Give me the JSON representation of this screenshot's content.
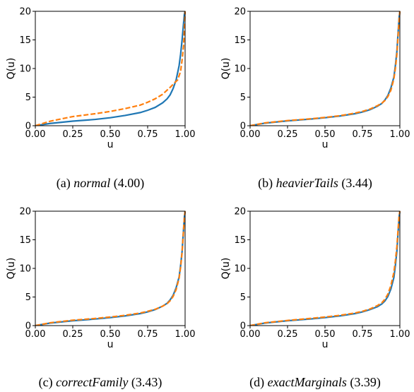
{
  "chart_data": [
    {
      "type": "line",
      "caption": {
        "prefix": "(a) ",
        "name": "normal",
        "suffix": " (4.00)"
      },
      "xlabel": "u",
      "ylabel": "Q(u)",
      "xlim": [
        0,
        1
      ],
      "ylim": [
        0,
        20
      ],
      "xticks": [
        "0.00",
        "0.25",
        "0.50",
        "0.75",
        "1.00"
      ],
      "yticks": [
        "0",
        "5",
        "10",
        "15",
        "20"
      ],
      "series": [
        {
          "color": "#1f77b4",
          "style": "solid",
          "x": [
            0,
            0.1,
            0.25,
            0.4,
            0.5,
            0.6,
            0.7,
            0.75,
            0.8,
            0.85,
            0.88,
            0.9,
            0.92,
            0.94,
            0.96,
            0.97,
            0.98,
            0.985,
            0.99,
            0.995,
            1.0
          ],
          "y": [
            0,
            0.4,
            0.8,
            1.1,
            1.4,
            1.8,
            2.3,
            2.7,
            3.2,
            4.0,
            4.7,
            5.4,
            6.5,
            8.0,
            10.5,
            12.5,
            15.0,
            16.5,
            18.0,
            19.5,
            20
          ]
        },
        {
          "color": "#ff7f0e",
          "style": "dashed",
          "x": [
            0,
            0.1,
            0.25,
            0.4,
            0.5,
            0.6,
            0.7,
            0.75,
            0.8,
            0.85,
            0.9,
            0.93,
            0.95,
            0.97,
            0.98,
            0.99,
            1.0
          ],
          "y": [
            0,
            0.8,
            1.6,
            2.1,
            2.5,
            3.0,
            3.6,
            4.1,
            4.7,
            5.5,
            6.7,
            7.5,
            8.0,
            9.5,
            11.5,
            14.0,
            20
          ]
        }
      ]
    },
    {
      "type": "line",
      "caption": {
        "prefix": "(b) ",
        "name": "heavierTails",
        "suffix": " (3.44)"
      },
      "xlabel": "u",
      "ylabel": "Q(u)",
      "xlim": [
        0,
        1
      ],
      "ylim": [
        0,
        20
      ],
      "xticks": [
        "0.00",
        "0.25",
        "0.50",
        "0.75",
        "1.00"
      ],
      "yticks": [
        "0",
        "5",
        "10",
        "15",
        "20"
      ],
      "series": [
        {
          "color": "#1f77b4",
          "style": "solid",
          "x": [
            0,
            0.1,
            0.25,
            0.4,
            0.5,
            0.6,
            0.7,
            0.75,
            0.8,
            0.85,
            0.88,
            0.9,
            0.92,
            0.94,
            0.96,
            0.97,
            0.98,
            0.99,
            0.995,
            1.0
          ],
          "y": [
            0,
            0.45,
            0.85,
            1.15,
            1.4,
            1.7,
            2.1,
            2.4,
            2.8,
            3.4,
            3.9,
            4.5,
            5.3,
            6.6,
            8.5,
            10.5,
            13.0,
            17.0,
            19.0,
            20
          ]
        },
        {
          "color": "#ff7f0e",
          "style": "dashed",
          "x": [
            0,
            0.1,
            0.25,
            0.4,
            0.5,
            0.6,
            0.7,
            0.75,
            0.8,
            0.85,
            0.88,
            0.9,
            0.92,
            0.94,
            0.96,
            0.97,
            0.98,
            0.99,
            0.995,
            1.0
          ],
          "y": [
            0,
            0.5,
            0.9,
            1.2,
            1.45,
            1.75,
            2.2,
            2.5,
            2.9,
            3.5,
            3.95,
            4.4,
            5.1,
            6.2,
            8.2,
            10.0,
            12.5,
            16.5,
            18.5,
            20
          ]
        }
      ]
    },
    {
      "type": "line",
      "caption": {
        "prefix": "(c) ",
        "name": "correctFamily",
        "suffix": " (3.43)"
      },
      "xlabel": "u",
      "ylabel": "Q(u)",
      "xlim": [
        0,
        1
      ],
      "ylim": [
        0,
        20
      ],
      "xticks": [
        "0.00",
        "0.25",
        "0.50",
        "0.75",
        "1.00"
      ],
      "yticks": [
        "0",
        "5",
        "10",
        "15",
        "20"
      ],
      "series": [
        {
          "color": "#1f77b4",
          "style": "solid",
          "x": [
            0,
            0.1,
            0.25,
            0.4,
            0.5,
            0.6,
            0.7,
            0.75,
            0.8,
            0.85,
            0.88,
            0.9,
            0.92,
            0.94,
            0.96,
            0.97,
            0.98,
            0.99,
            0.995,
            1.0
          ],
          "y": [
            0,
            0.45,
            0.85,
            1.15,
            1.4,
            1.7,
            2.1,
            2.4,
            2.8,
            3.4,
            3.9,
            4.5,
            5.3,
            6.6,
            8.5,
            10.5,
            13.0,
            17.0,
            19.0,
            20
          ]
        },
        {
          "color": "#ff7f0e",
          "style": "dashed",
          "x": [
            0,
            0.1,
            0.25,
            0.4,
            0.5,
            0.6,
            0.7,
            0.75,
            0.8,
            0.85,
            0.88,
            0.9,
            0.92,
            0.94,
            0.96,
            0.97,
            0.98,
            0.99,
            0.995,
            1.0
          ],
          "y": [
            0,
            0.5,
            0.95,
            1.25,
            1.5,
            1.8,
            2.2,
            2.5,
            2.85,
            3.4,
            3.85,
            4.35,
            5.1,
            6.3,
            8.3,
            10.2,
            12.8,
            16.8,
            18.8,
            20
          ]
        }
      ]
    },
    {
      "type": "line",
      "caption": {
        "prefix": "(d) ",
        "name": "exactMarginals",
        "suffix": " (3.39)"
      },
      "xlabel": "u",
      "ylabel": "Q(u)",
      "xlim": [
        0,
        1
      ],
      "ylim": [
        0,
        20
      ],
      "xticks": [
        "0.00",
        "0.25",
        "0.50",
        "0.75",
        "1.00"
      ],
      "yticks": [
        "0",
        "5",
        "10",
        "15",
        "20"
      ],
      "series": [
        {
          "color": "#1f77b4",
          "style": "solid",
          "x": [
            0,
            0.1,
            0.25,
            0.4,
            0.5,
            0.6,
            0.7,
            0.75,
            0.8,
            0.85,
            0.88,
            0.9,
            0.92,
            0.94,
            0.96,
            0.97,
            0.98,
            0.99,
            0.995,
            1.0
          ],
          "y": [
            0,
            0.45,
            0.85,
            1.15,
            1.4,
            1.7,
            2.1,
            2.4,
            2.8,
            3.3,
            3.8,
            4.3,
            5.1,
            6.4,
            8.4,
            10.5,
            13.0,
            17.0,
            19.0,
            20
          ]
        },
        {
          "color": "#ff7f0e",
          "style": "dashed",
          "x": [
            0,
            0.1,
            0.25,
            0.4,
            0.5,
            0.6,
            0.7,
            0.75,
            0.8,
            0.85,
            0.88,
            0.9,
            0.92,
            0.94,
            0.96,
            0.97,
            0.98,
            0.99,
            0.995,
            1.0
          ],
          "y": [
            0,
            0.5,
            0.9,
            1.25,
            1.5,
            1.8,
            2.2,
            2.5,
            2.9,
            3.5,
            4.0,
            4.6,
            5.5,
            7.0,
            9.3,
            11.3,
            13.8,
            17.5,
            19.2,
            20
          ]
        }
      ]
    }
  ]
}
